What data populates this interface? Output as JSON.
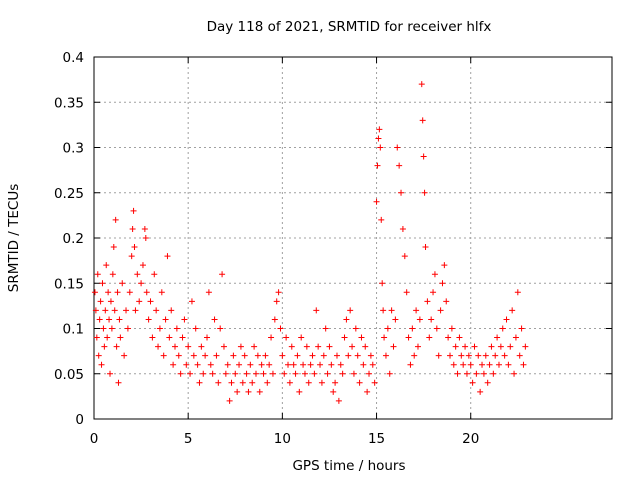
{
  "chart_data": {
    "type": "scatter",
    "title": "Day 118 of 2021, SRMTID for receiver hlfx",
    "xlabel": "GPS time / hours",
    "ylabel": "SRMTID / TECUs",
    "xlim": [
      0,
      27.5
    ],
    "ylim": [
      0,
      0.4
    ],
    "x_ticks": [
      0,
      5,
      10,
      15,
      20
    ],
    "x_tick_labels": [
      "0",
      "5",
      "10",
      "15",
      "20"
    ],
    "y_ticks": [
      0,
      0.05,
      0.1,
      0.15,
      0.2,
      0.25,
      0.3,
      0.35,
      0.4
    ],
    "y_tick_labels": [
      "0",
      "0.05",
      "0.1",
      "0.15",
      "0.2",
      "0.25",
      "0.3",
      "0.35",
      "0.4"
    ],
    "grid": true,
    "marker": "+",
    "series_color": "#ff0000",
    "series": [
      {
        "name": "SRMTID",
        "points": [
          [
            0.05,
            0.14
          ],
          [
            0.1,
            0.12
          ],
          [
            0.15,
            0.09
          ],
          [
            0.2,
            0.16
          ],
          [
            0.25,
            0.07
          ],
          [
            0.3,
            0.11
          ],
          [
            0.35,
            0.13
          ],
          [
            0.4,
            0.06
          ],
          [
            0.45,
            0.15
          ],
          [
            0.5,
            0.1
          ],
          [
            0.55,
            0.08
          ],
          [
            0.6,
            0.12
          ],
          [
            0.65,
            0.17
          ],
          [
            0.7,
            0.09
          ],
          [
            0.75,
            0.14
          ],
          [
            0.8,
            0.11
          ],
          [
            0.85,
            0.05
          ],
          [
            0.9,
            0.13
          ],
          [
            0.95,
            0.1
          ],
          [
            1.0,
            0.16
          ],
          [
            1.05,
            0.19
          ],
          [
            1.1,
            0.12
          ],
          [
            1.15,
            0.22
          ],
          [
            1.2,
            0.08
          ],
          [
            1.25,
            0.14
          ],
          [
            1.3,
            0.04
          ],
          [
            1.35,
            0.11
          ],
          [
            1.4,
            0.09
          ],
          [
            1.5,
            0.15
          ],
          [
            1.6,
            0.07
          ],
          [
            1.7,
            0.12
          ],
          [
            1.8,
            0.1
          ],
          [
            1.9,
            0.14
          ],
          [
            2.0,
            0.18
          ],
          [
            2.05,
            0.21
          ],
          [
            2.1,
            0.23
          ],
          [
            2.15,
            0.19
          ],
          [
            2.2,
            0.12
          ],
          [
            2.3,
            0.16
          ],
          [
            2.4,
            0.13
          ],
          [
            2.5,
            0.15
          ],
          [
            2.6,
            0.17
          ],
          [
            2.7,
            0.21
          ],
          [
            2.75,
            0.2
          ],
          [
            2.8,
            0.14
          ],
          [
            2.9,
            0.11
          ],
          [
            3.0,
            0.13
          ],
          [
            3.1,
            0.09
          ],
          [
            3.2,
            0.16
          ],
          [
            3.3,
            0.12
          ],
          [
            3.4,
            0.08
          ],
          [
            3.5,
            0.1
          ],
          [
            3.6,
            0.14
          ],
          [
            3.7,
            0.07
          ],
          [
            3.8,
            0.11
          ],
          [
            3.9,
            0.18
          ],
          [
            4.0,
            0.09
          ],
          [
            4.1,
            0.12
          ],
          [
            4.2,
            0.06
          ],
          [
            4.3,
            0.08
          ],
          [
            4.4,
            0.1
          ],
          [
            4.5,
            0.07
          ],
          [
            4.6,
            0.05
          ],
          [
            4.7,
            0.09
          ],
          [
            4.8,
            0.11
          ],
          [
            4.9,
            0.06
          ],
          [
            5.0,
            0.08
          ],
          [
            5.1,
            0.05
          ],
          [
            5.2,
            0.13
          ],
          [
            5.3,
            0.07
          ],
          [
            5.4,
            0.1
          ],
          [
            5.5,
            0.06
          ],
          [
            5.6,
            0.04
          ],
          [
            5.7,
            0.08
          ],
          [
            5.8,
            0.05
          ],
          [
            5.9,
            0.07
          ],
          [
            6.0,
            0.09
          ],
          [
            6.1,
            0.14
          ],
          [
            6.2,
            0.06
          ],
          [
            6.3,
            0.05
          ],
          [
            6.4,
            0.11
          ],
          [
            6.5,
            0.07
          ],
          [
            6.6,
            0.04
          ],
          [
            6.7,
            0.1
          ],
          [
            6.8,
            0.16
          ],
          [
            6.9,
            0.08
          ],
          [
            7.0,
            0.05
          ],
          [
            7.1,
            0.06
          ],
          [
            7.2,
            0.02
          ],
          [
            7.3,
            0.04
          ],
          [
            7.4,
            0.07
          ],
          [
            7.5,
            0.05
          ],
          [
            7.6,
            0.03
          ],
          [
            7.7,
            0.06
          ],
          [
            7.8,
            0.08
          ],
          [
            7.9,
            0.04
          ],
          [
            8.0,
            0.07
          ],
          [
            8.1,
            0.05
          ],
          [
            8.2,
            0.03
          ],
          [
            8.3,
            0.06
          ],
          [
            8.4,
            0.04
          ],
          [
            8.5,
            0.08
          ],
          [
            8.6,
            0.05
          ],
          [
            8.7,
            0.07
          ],
          [
            8.8,
            0.03
          ],
          [
            8.9,
            0.06
          ],
          [
            9.0,
            0.05
          ],
          [
            9.1,
            0.07
          ],
          [
            9.2,
            0.04
          ],
          [
            9.3,
            0.06
          ],
          [
            9.4,
            0.09
          ],
          [
            9.5,
            0.05
          ],
          [
            9.6,
            0.11
          ],
          [
            9.7,
            0.13
          ],
          [
            9.8,
            0.14
          ],
          [
            9.9,
            0.1
          ],
          [
            10.0,
            0.07
          ],
          [
            10.1,
            0.05
          ],
          [
            10.2,
            0.09
          ],
          [
            10.3,
            0.06
          ],
          [
            10.4,
            0.04
          ],
          [
            10.5,
            0.08
          ],
          [
            10.6,
            0.06
          ],
          [
            10.7,
            0.05
          ],
          [
            10.8,
            0.07
          ],
          [
            10.9,
            0.03
          ],
          [
            11.0,
            0.09
          ],
          [
            11.1,
            0.06
          ],
          [
            11.2,
            0.05
          ],
          [
            11.3,
            0.08
          ],
          [
            11.4,
            0.04
          ],
          [
            11.5,
            0.06
          ],
          [
            11.6,
            0.07
          ],
          [
            11.7,
            0.05
          ],
          [
            11.8,
            0.12
          ],
          [
            11.9,
            0.08
          ],
          [
            12.0,
            0.06
          ],
          [
            12.1,
            0.04
          ],
          [
            12.2,
            0.07
          ],
          [
            12.3,
            0.1
          ],
          [
            12.4,
            0.05
          ],
          [
            12.5,
            0.08
          ],
          [
            12.6,
            0.06
          ],
          [
            12.7,
            0.03
          ],
          [
            12.8,
            0.04
          ],
          [
            12.9,
            0.07
          ],
          [
            13.0,
            0.02
          ],
          [
            13.1,
            0.06
          ],
          [
            13.2,
            0.05
          ],
          [
            13.3,
            0.09
          ],
          [
            13.4,
            0.11
          ],
          [
            13.5,
            0.07
          ],
          [
            13.6,
            0.12
          ],
          [
            13.7,
            0.08
          ],
          [
            13.8,
            0.05
          ],
          [
            13.9,
            0.1
          ],
          [
            14.0,
            0.07
          ],
          [
            14.1,
            0.04
          ],
          [
            14.2,
            0.09
          ],
          [
            14.3,
            0.06
          ],
          [
            14.4,
            0.08
          ],
          [
            14.5,
            0.03
          ],
          [
            14.6,
            0.05
          ],
          [
            14.7,
            0.07
          ],
          [
            14.8,
            0.06
          ],
          [
            14.9,
            0.04
          ],
          [
            15.0,
            0.24
          ],
          [
            15.05,
            0.28
          ],
          [
            15.1,
            0.31
          ],
          [
            15.15,
            0.32
          ],
          [
            15.2,
            0.3
          ],
          [
            15.25,
            0.22
          ],
          [
            15.3,
            0.15
          ],
          [
            15.35,
            0.12
          ],
          [
            15.4,
            0.09
          ],
          [
            15.5,
            0.07
          ],
          [
            15.6,
            0.1
          ],
          [
            15.7,
            0.05
          ],
          [
            15.8,
            0.12
          ],
          [
            15.9,
            0.08
          ],
          [
            16.0,
            0.11
          ],
          [
            16.1,
            0.3
          ],
          [
            16.2,
            0.28
          ],
          [
            16.3,
            0.25
          ],
          [
            16.4,
            0.21
          ],
          [
            16.5,
            0.18
          ],
          [
            16.6,
            0.14
          ],
          [
            16.7,
            0.09
          ],
          [
            16.8,
            0.06
          ],
          [
            16.9,
            0.1
          ],
          [
            17.0,
            0.07
          ],
          [
            17.1,
            0.12
          ],
          [
            17.2,
            0.08
          ],
          [
            17.3,
            0.11
          ],
          [
            17.4,
            0.37
          ],
          [
            17.45,
            0.33
          ],
          [
            17.5,
            0.29
          ],
          [
            17.55,
            0.25
          ],
          [
            17.6,
            0.19
          ],
          [
            17.7,
            0.13
          ],
          [
            17.8,
            0.09
          ],
          [
            17.9,
            0.11
          ],
          [
            18.0,
            0.14
          ],
          [
            18.1,
            0.16
          ],
          [
            18.2,
            0.1
          ],
          [
            18.3,
            0.07
          ],
          [
            18.4,
            0.12
          ],
          [
            18.5,
            0.15
          ],
          [
            18.6,
            0.17
          ],
          [
            18.7,
            0.13
          ],
          [
            18.8,
            0.09
          ],
          [
            18.9,
            0.07
          ],
          [
            19.0,
            0.1
          ],
          [
            19.1,
            0.06
          ],
          [
            19.2,
            0.08
          ],
          [
            19.3,
            0.05
          ],
          [
            19.4,
            0.09
          ],
          [
            19.5,
            0.07
          ],
          [
            19.6,
            0.06
          ],
          [
            19.7,
            0.08
          ],
          [
            19.8,
            0.05
          ],
          [
            19.9,
            0.07
          ],
          [
            20.0,
            0.06
          ],
          [
            20.1,
            0.04
          ],
          [
            20.2,
            0.08
          ],
          [
            20.3,
            0.05
          ],
          [
            20.4,
            0.07
          ],
          [
            20.5,
            0.03
          ],
          [
            20.6,
            0.06
          ],
          [
            20.7,
            0.05
          ],
          [
            20.8,
            0.07
          ],
          [
            20.9,
            0.04
          ],
          [
            21.0,
            0.06
          ],
          [
            21.1,
            0.08
          ],
          [
            21.2,
            0.05
          ],
          [
            21.3,
            0.07
          ],
          [
            21.4,
            0.09
          ],
          [
            21.5,
            0.06
          ],
          [
            21.6,
            0.08
          ],
          [
            21.7,
            0.1
          ],
          [
            21.8,
            0.07
          ],
          [
            21.9,
            0.11
          ],
          [
            22.0,
            0.06
          ],
          [
            22.1,
            0.08
          ],
          [
            22.2,
            0.12
          ],
          [
            22.3,
            0.05
          ],
          [
            22.4,
            0.09
          ],
          [
            22.5,
            0.14
          ],
          [
            22.6,
            0.07
          ],
          [
            22.7,
            0.1
          ],
          [
            22.8,
            0.06
          ],
          [
            22.9,
            0.08
          ]
        ]
      }
    ]
  }
}
